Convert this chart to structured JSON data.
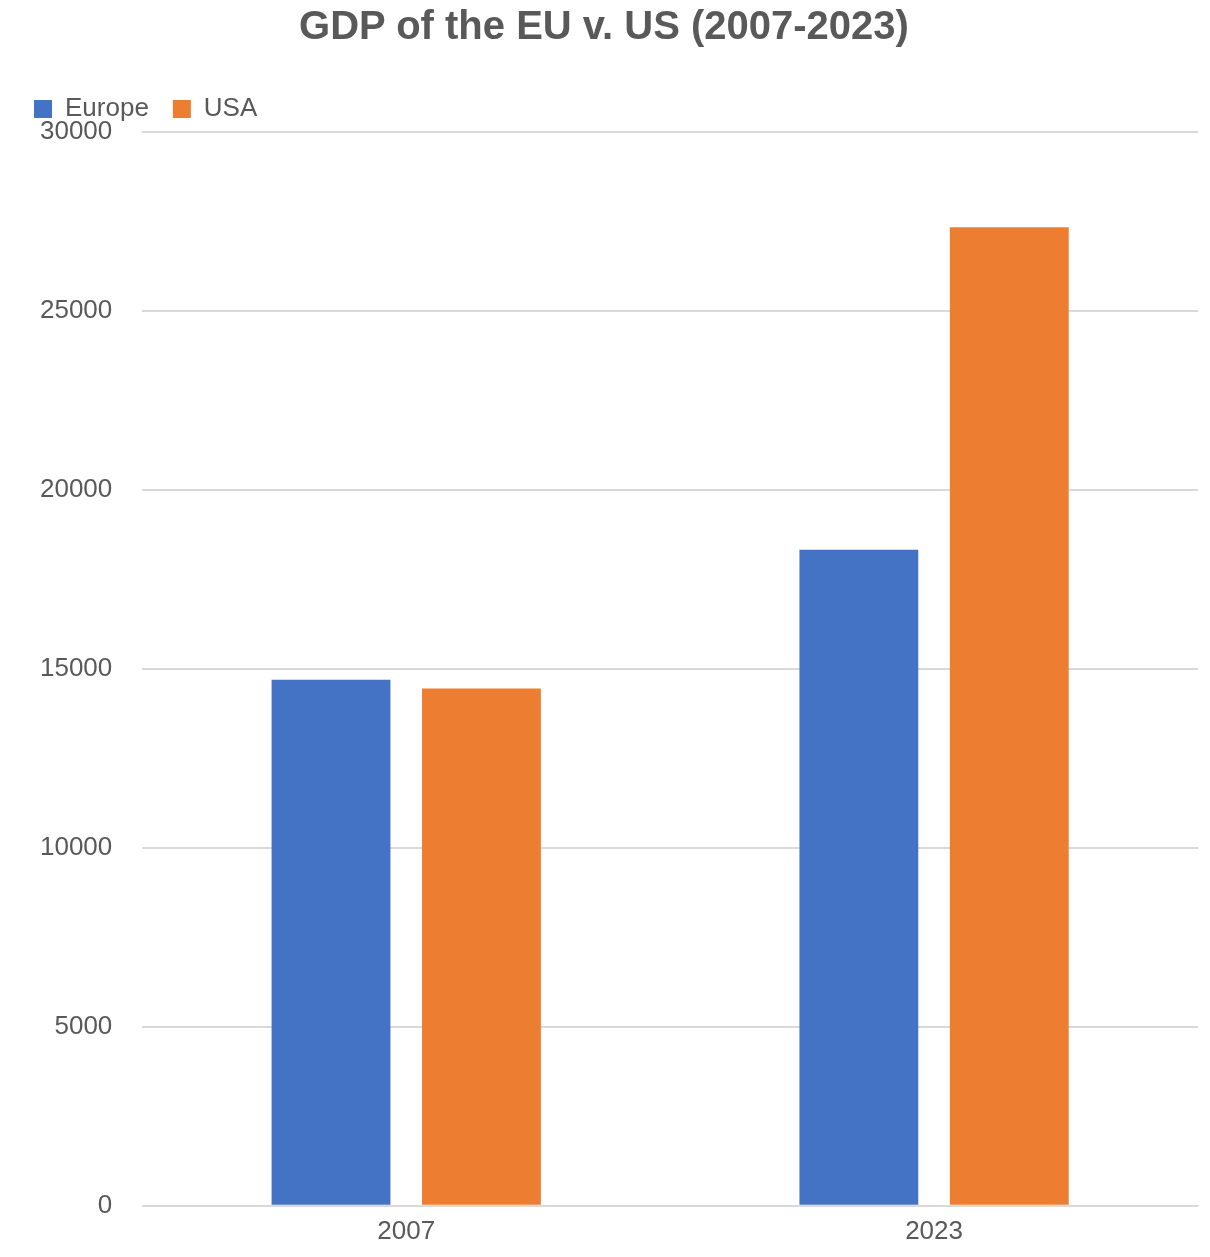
{
  "chart_data": {
    "type": "bar",
    "title": "GDP of the EU v. US (2007-2023)",
    "categories": [
      "2007",
      "2023"
    ],
    "series": [
      {
        "name": "Europe",
        "color": "#4472c4",
        "values": [
          14700,
          18330
        ]
      },
      {
        "name": "USA",
        "color": "#ed7d31",
        "values": [
          14450,
          27340
        ]
      }
    ],
    "ylim": [
      0,
      30000
    ],
    "yticks": [
      0,
      5000,
      10000,
      15000,
      20000,
      25000,
      30000
    ],
    "grid": "y",
    "legend": "top left"
  }
}
